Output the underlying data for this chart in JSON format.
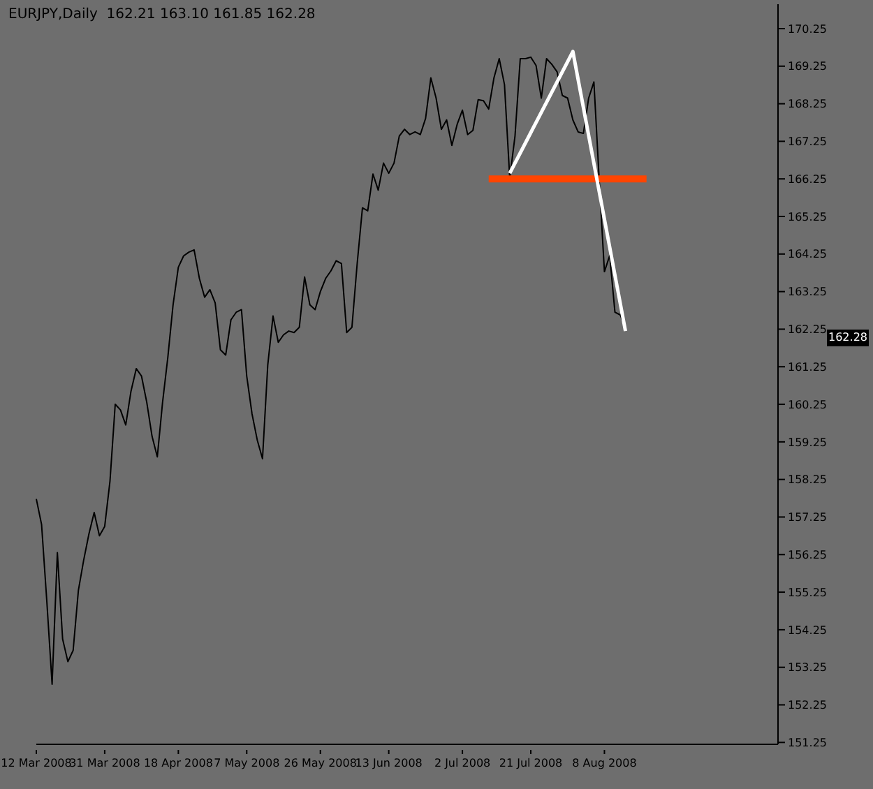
{
  "chart_data": {
    "type": "line",
    "title": "EURJPY,Daily  162.21 163.10 161.85 162.28",
    "categories": [
      "12 Mar 2008",
      null,
      null,
      null,
      null,
      null,
      null,
      null,
      null,
      null,
      null,
      null,
      null,
      "31 Mar 2008",
      null,
      null,
      null,
      null,
      null,
      null,
      null,
      null,
      null,
      null,
      null,
      null,
      null,
      "18 Apr 2008",
      null,
      null,
      null,
      null,
      null,
      null,
      null,
      null,
      null,
      null,
      null,
      null,
      "7 May 2008",
      null,
      null,
      null,
      null,
      null,
      null,
      null,
      null,
      null,
      null,
      null,
      null,
      null,
      "26 May 2008",
      null,
      null,
      null,
      null,
      null,
      null,
      null,
      null,
      null,
      null,
      null,
      null,
      "13 Jun 2008",
      null,
      null,
      null,
      null,
      null,
      null,
      null,
      null,
      null,
      null,
      null,
      null,
      null,
      "2 Jul 2008",
      null,
      null,
      null,
      null,
      null,
      null,
      null,
      null,
      null,
      null,
      null,
      null,
      "21 Jul 2008",
      null,
      null,
      null,
      null,
      null,
      null,
      null,
      null,
      null,
      null,
      null,
      null,
      null,
      "8 Aug 2008",
      null,
      null,
      null,
      null,
      null,
      null,
      null,
      null,
      null,
      null,
      null,
      null,
      null,
      null,
      null,
      null,
      null,
      null,
      null,
      null,
      null,
      null,
      null,
      null,
      null,
      null,
      null,
      null,
      null,
      null,
      null,
      null,
      null
    ],
    "series": [
      {
        "color": "#000000",
        "values": [
          157.73,
          157.05,
          155.0,
          152.8,
          156.3,
          154.0,
          153.4,
          153.7,
          155.3,
          156.1,
          156.8,
          157.37,
          156.75,
          157.0,
          158.2,
          160.25,
          160.1,
          159.7,
          160.6,
          161.2,
          161.0,
          160.3,
          159.4,
          158.85,
          160.3,
          161.5,
          162.9,
          163.9,
          164.2,
          164.3,
          164.36,
          163.6,
          163.1,
          163.3,
          162.95,
          161.7,
          161.56,
          162.5,
          162.7,
          162.77,
          161.0,
          160.0,
          159.3,
          158.8,
          161.3,
          162.6,
          161.9,
          162.1,
          162.2,
          162.16,
          162.3,
          163.64,
          162.9,
          162.77,
          163.25,
          163.6,
          163.8,
          164.07,
          164.0,
          162.16,
          162.3,
          164.0,
          165.48,
          165.4,
          166.38,
          165.95,
          166.67,
          166.4,
          166.67,
          167.39,
          167.57,
          167.43,
          167.5,
          167.43,
          167.86,
          168.94,
          168.4,
          167.57,
          167.82,
          167.14,
          167.7,
          168.08,
          167.43,
          167.54,
          168.36,
          168.33,
          168.11,
          168.94,
          169.45,
          168.76,
          166.27,
          167.39,
          169.45,
          169.45,
          169.49,
          169.27,
          168.4,
          169.45,
          169.3,
          169.1,
          168.47,
          168.4,
          167.82,
          167.5,
          167.46,
          168.4,
          168.83,
          166.24,
          163.78,
          164.21,
          162.7,
          162.63,
          162.28,
          null,
          null,
          null,
          null,
          null,
          null,
          null,
          null,
          null,
          null,
          null,
          null,
          null,
          null,
          null,
          null,
          null,
          null,
          null,
          null,
          null,
          null,
          null,
          null,
          null,
          null,
          null,
          null,
          null
        ]
      },
      {
        "color": "#ff4500",
        "values": [
          null,
          null,
          null,
          null,
          null,
          null,
          null,
          null,
          null,
          null,
          null,
          null,
          null,
          null,
          null,
          null,
          null,
          null,
          null,
          null,
          null,
          null,
          null,
          null,
          null,
          null,
          null,
          null,
          null,
          null,
          null,
          null,
          null,
          null,
          null,
          null,
          null,
          null,
          null,
          null,
          null,
          null,
          null,
          null,
          null,
          null,
          null,
          null,
          null,
          null,
          null,
          null,
          null,
          null,
          null,
          null,
          null,
          null,
          null,
          null,
          null,
          null,
          null,
          null,
          null,
          null,
          null,
          null,
          null,
          null,
          null,
          null,
          null,
          null,
          null,
          null,
          null,
          null,
          null,
          null,
          null,
          null,
          null,
          null,
          null,
          null,
          166.25,
          166.25,
          166.25,
          166.25,
          166.25,
          166.25,
          166.25,
          166.25,
          166.25,
          166.25,
          166.25,
          166.25,
          166.25,
          166.25,
          166.25,
          166.25,
          166.25,
          166.25,
          166.25,
          166.25,
          166.25,
          166.25,
          166.25,
          166.25,
          166.25,
          166.25,
          166.25,
          166.25,
          166.25,
          166.25,
          166.25,
          null,
          null,
          null,
          null,
          null,
          null,
          null,
          null,
          null,
          null,
          null,
          null,
          null,
          null,
          null,
          null,
          null,
          null,
          null,
          null,
          null,
          null,
          null,
          null,
          null
        ]
      },
      {
        "color": "#ffffff",
        "values": [
          null,
          null,
          null,
          null,
          null,
          null,
          null,
          null,
          null,
          null,
          null,
          null,
          null,
          null,
          null,
          null,
          null,
          null,
          null,
          null,
          null,
          null,
          null,
          null,
          null,
          null,
          null,
          null,
          null,
          null,
          null,
          null,
          null,
          null,
          null,
          null,
          null,
          null,
          null,
          null,
          null,
          null,
          null,
          null,
          null,
          null,
          null,
          null,
          null,
          null,
          null,
          null,
          null,
          null,
          null,
          null,
          null,
          null,
          null,
          null,
          null,
          null,
          null,
          null,
          null,
          null,
          null,
          null,
          null,
          null,
          null,
          null,
          null,
          null,
          null,
          null,
          null,
          null,
          null,
          null,
          null,
          null,
          null,
          null,
          null,
          null,
          null,
          null,
          null,
          null,
          166.4,
          null,
          null,
          null,
          null,
          null,
          null,
          null,
          null,
          null,
          null,
          null,
          169.64,
          null,
          null,
          null,
          null,
          null,
          null,
          null,
          null,
          null,
          162.2,
          null,
          null,
          null,
          null,
          null,
          null,
          null,
          null,
          null,
          null,
          null,
          null,
          null,
          null,
          null,
          null,
          null,
          null,
          null,
          null,
          null,
          null,
          null,
          null,
          null,
          null,
          null,
          null,
          null
        ]
      }
    ],
    "ylim": [
      151.2,
      170.9
    ],
    "yticks": [
      {
        "value": 151.25,
        "label": "151.25"
      },
      {
        "value": 152.25,
        "label": "152.25"
      },
      {
        "value": 153.25,
        "label": "153.25"
      },
      {
        "value": 154.25,
        "label": "154.25"
      },
      {
        "value": 155.25,
        "label": "155.25"
      },
      {
        "value": 156.25,
        "label": "156.25"
      },
      {
        "value": 157.25,
        "label": "157.25"
      },
      {
        "value": 158.25,
        "label": "158.25"
      },
      {
        "value": 159.25,
        "label": "159.25"
      },
      {
        "value": 160.25,
        "label": "160.25"
      },
      {
        "value": 161.25,
        "label": "161.25"
      },
      {
        "value": 162.25,
        "label": "162.25"
      },
      {
        "value": 163.25,
        "label": "163.25"
      },
      {
        "value": 164.25,
        "label": "164.25"
      },
      {
        "value": 165.25,
        "label": "165.25"
      },
      {
        "value": 166.25,
        "label": "166.25"
      },
      {
        "value": 167.25,
        "label": "167.25"
      },
      {
        "value": 168.25,
        "label": "168.25"
      },
      {
        "value": 169.25,
        "label": "169.25"
      },
      {
        "value": 170.25,
        "label": "170.25"
      }
    ],
    "annotations": [
      "162.28"
    ],
    "grid": false,
    "marker": "none",
    "line_style": "solid"
  }
}
